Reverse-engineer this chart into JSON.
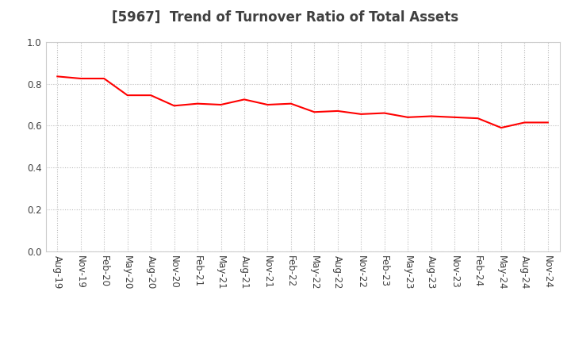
{
  "title": "[5967]  Trend of Turnover Ratio of Total Assets",
  "line_color": "#FF0000",
  "line_width": 1.5,
  "background_color": "#FFFFFF",
  "grid_color": "#BBBBBB",
  "ylim": [
    0.0,
    1.0
  ],
  "yticks": [
    0.0,
    0.2,
    0.4,
    0.6,
    0.8,
    1.0
  ],
  "xlabel_labels": [
    "Aug-19",
    "Nov-19",
    "Feb-20",
    "May-20",
    "Aug-20",
    "Nov-20",
    "Feb-21",
    "May-21",
    "Aug-21",
    "Nov-21",
    "Feb-22",
    "May-22",
    "Aug-22",
    "Nov-22",
    "Feb-23",
    "May-23",
    "Aug-23",
    "Nov-23",
    "Feb-24",
    "May-24",
    "Aug-24",
    "Nov-24"
  ],
  "values": [
    0.835,
    0.825,
    0.825,
    0.745,
    0.745,
    0.695,
    0.705,
    0.7,
    0.725,
    0.7,
    0.705,
    0.665,
    0.67,
    0.655,
    0.66,
    0.64,
    0.645,
    0.64,
    0.635,
    0.59,
    0.615,
    0.615
  ],
  "title_fontsize": 12,
  "tick_fontsize": 8.5,
  "title_color": "#404040",
  "tick_color": "#404040"
}
